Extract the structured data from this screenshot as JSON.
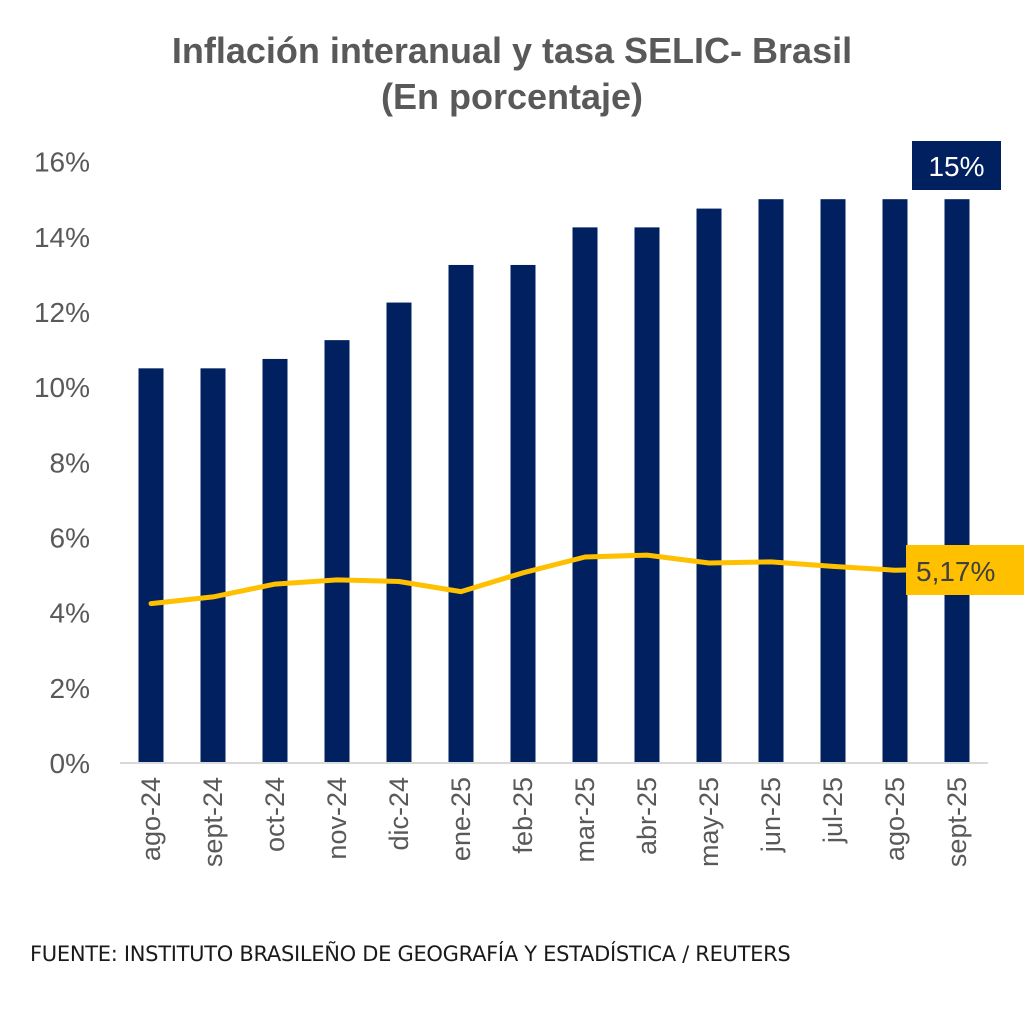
{
  "chart_data": {
    "type": "bar",
    "title": "Inflación interanual y tasa SELIC- Brasil",
    "subtitle": "(En porcentaje)",
    "xlabel": "",
    "ylabel": "",
    "ylim": [
      0,
      16
    ],
    "yticks": [
      0,
      2,
      4,
      6,
      8,
      10,
      12,
      14,
      16
    ],
    "ytick_labels": [
      "0%",
      "2%",
      "4%",
      "6%",
      "8%",
      "10%",
      "12%",
      "14%",
      "16%"
    ],
    "grid": false,
    "legend": "none",
    "categories": [
      "ago-24",
      "sept-24",
      "oct-24",
      "nov-24",
      "dic-24",
      "ene-25",
      "feb-25",
      "mar-25",
      "abr-25",
      "may-25",
      "jun-25",
      "jul-25",
      "ago-25",
      "sept-25"
    ],
    "series": [
      {
        "name": "Tasa SELIC",
        "type": "bar",
        "color": "#002060",
        "values": [
          10.5,
          10.5,
          10.75,
          11.25,
          12.25,
          13.25,
          13.25,
          14.25,
          14.25,
          14.75,
          15,
          15,
          15,
          15
        ],
        "last_label": "15%"
      },
      {
        "name": "Inflación interanual",
        "type": "line",
        "color": "#FFC000",
        "values": [
          4.24,
          4.42,
          4.76,
          4.87,
          4.83,
          4.56,
          5.06,
          5.48,
          5.53,
          5.32,
          5.35,
          5.23,
          5.13,
          5.17
        ],
        "last_label": "5,17%"
      }
    ],
    "annotations": [
      "15%",
      "5,17%"
    ]
  },
  "source": "FUENTE: INSTITUTO BRASILEÑO DE GEOGRAFÍA Y ESTADÍSTICA / REUTERS"
}
